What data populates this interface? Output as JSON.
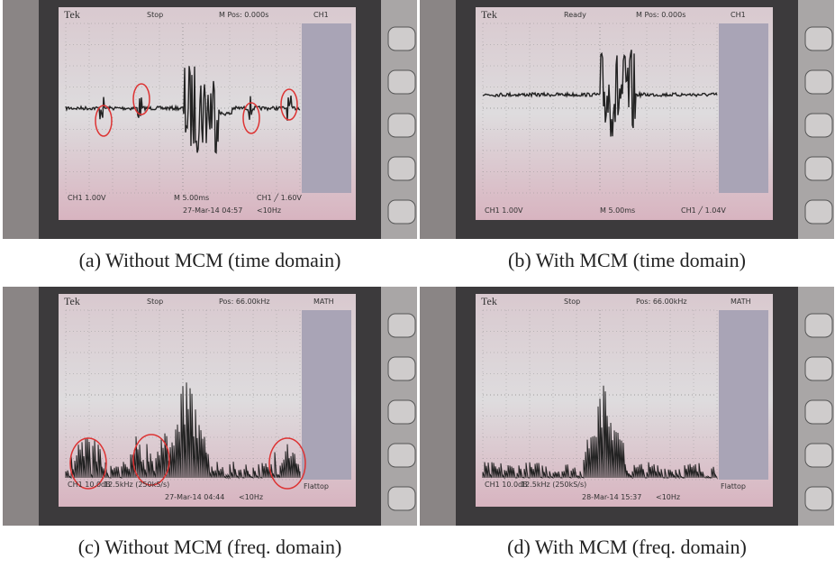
{
  "panels": [
    {
      "caption": "(a) Without MCM (time domain)",
      "screen": {
        "brand": "Tek",
        "status": "Stop",
        "position": "M Pos: 0.000s",
        "channel": "CH1",
        "readouts": [
          "CH1 1.00V",
          "M 5.00ms",
          "CH1 ╱ 1.60V",
          "27-Mar-14 04:57",
          "<10Hz"
        ]
      }
    },
    {
      "caption": "(b) With MCM (time domain)",
      "screen": {
        "brand": "Tek",
        "status": "Ready",
        "position": "M Pos: 0.000s",
        "channel": "CH1",
        "readouts": [
          "CH1 1.00V",
          "M 5.00ms",
          "CH1 ╱ 1.04V"
        ]
      }
    },
    {
      "caption": "(c) Without MCM (freq. domain)",
      "screen": {
        "brand": "Tek",
        "status": "Stop",
        "position": "Pos: 66.00kHz",
        "channel": "MATH",
        "readouts": [
          "CH1 10.0dB",
          "12.5kHz (250kS/s)",
          "27-Mar-14 04:44",
          "<10Hz",
          "Flattop"
        ]
      }
    },
    {
      "caption": "(d) With MCM (freq. domain)",
      "screen": {
        "brand": "Tek",
        "status": "Stop",
        "position": "Pos: 66.00kHz",
        "channel": "MATH",
        "readouts": [
          "CH1 10.0dB",
          "12.5kHz (250kS/s)",
          "28-Mar-14 15:37",
          "<10Hz",
          "Flattop"
        ]
      }
    }
  ]
}
